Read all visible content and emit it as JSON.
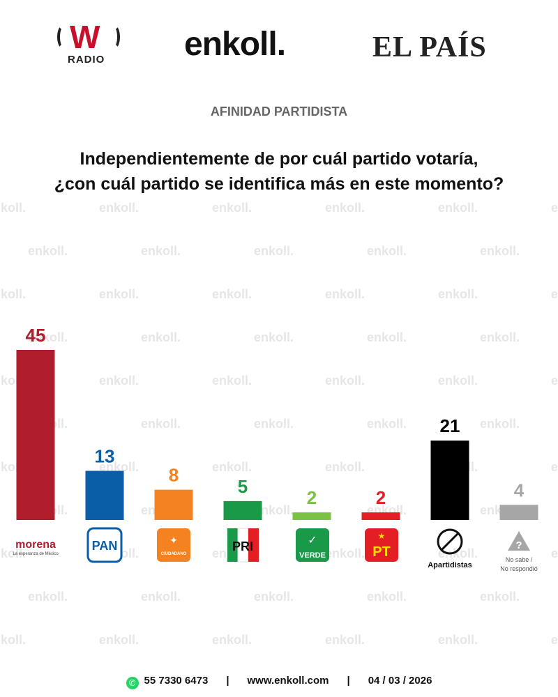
{
  "header": {
    "logo_w_letter": "W",
    "logo_w_sub": "RADIO",
    "logo_enkoll": "enkoll.",
    "logo_pais": "EL PAÍS"
  },
  "section_label": "AFINIDAD PARTIDISTA",
  "question": {
    "line1": "Independientemente de por cuál partido votaría,",
    "line2": "¿con cuál partido se identifica más en este momento?"
  },
  "watermark_text": "enkoll.",
  "chart_data": {
    "type": "bar",
    "title": "",
    "xlabel": "",
    "ylabel": "",
    "ylim": [
      0,
      45
    ],
    "grid": false,
    "legend": "none",
    "categories": [
      "morena",
      "PAN",
      "MC",
      "PRI",
      "VERDE",
      "PT",
      "Apartidistas",
      "No sabe / No respondió"
    ],
    "values": [
      45,
      13,
      8,
      5,
      2,
      2,
      21,
      4
    ],
    "colors": [
      "#b01e2d",
      "#0a5ea8",
      "#f58220",
      "#1a9a48",
      "#7bc143",
      "#e31e24",
      "#000000",
      "#a6a6a6"
    ],
    "category_labels": {
      "morena": "morena",
      "morena_sub": "La esperanza de México",
      "pan": "PAN",
      "mc_sub": "CIUDADANO",
      "pri": "PRI",
      "verde": "VERDE",
      "pt": "PT",
      "apartidistas": "Apartidistas",
      "no_sabe_1": "No sabe /",
      "no_sabe_2": "No respondió"
    }
  },
  "footer": {
    "phone": "55 7330 6473",
    "separator": "|",
    "website": "www.enkoll.com",
    "date": "04 / 03 / 2026"
  }
}
